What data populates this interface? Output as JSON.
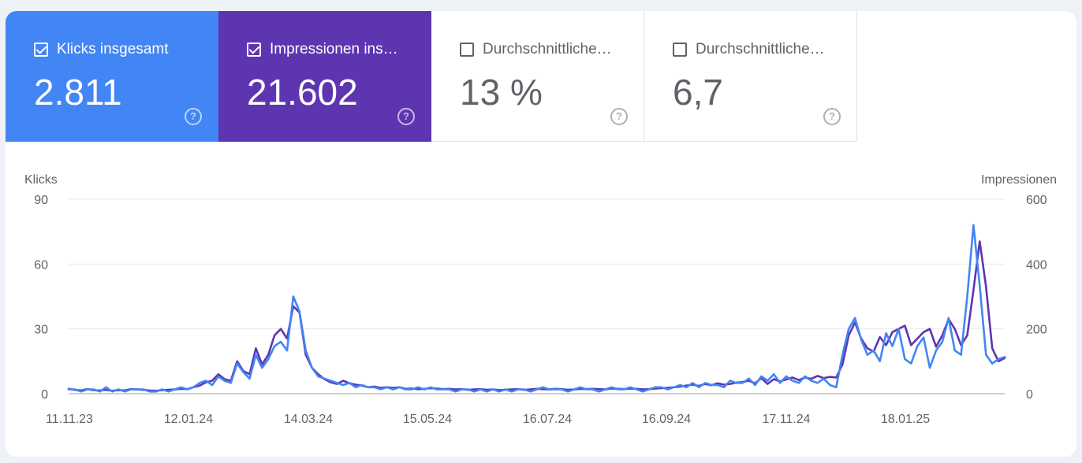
{
  "metrics": [
    {
      "label": "Klicks insgesamt",
      "value": "2.811",
      "checked": true,
      "color": "#4285f4"
    },
    {
      "label": "Impressionen ins…",
      "value": "21.602",
      "checked": true,
      "color": "#5e35b1"
    },
    {
      "label": "Durchschnittliche…",
      "value": "13 %",
      "checked": false,
      "color": "#ffffff"
    },
    {
      "label": "Durchschnittliche…",
      "value": "6,7",
      "checked": false,
      "color": "#ffffff"
    }
  ],
  "help_icon": "help-circle-icon",
  "chart_data": {
    "type": "line",
    "ylabel_left": "Klicks",
    "ylabel_right": "Impressionen",
    "ylim_left": [
      0,
      90
    ],
    "ylim_right": [
      0,
      600
    ],
    "yticks_left": [
      "0",
      "30",
      "60",
      "90"
    ],
    "yticks_right": [
      "0",
      "200",
      "400",
      "600"
    ],
    "xticks": [
      "11.11.23",
      "12.01.24",
      "14.03.24",
      "15.05.24",
      "16.07.24",
      "16.09.24",
      "17.11.24",
      "18.01.25"
    ],
    "grid": true,
    "series": [
      {
        "name": "Impressionen",
        "axis": "right",
        "color": "#5e35b1",
        "values": [
          15,
          12,
          10,
          14,
          11,
          10,
          12,
          9,
          11,
          10,
          14,
          13,
          12,
          10,
          9,
          11,
          12,
          13,
          15,
          14,
          20,
          25,
          35,
          40,
          60,
          45,
          40,
          100,
          70,
          60,
          140,
          90,
          120,
          180,
          200,
          170,
          270,
          250,
          120,
          80,
          60,
          45,
          35,
          30,
          40,
          32,
          28,
          25,
          20,
          22,
          18,
          20,
          18,
          20,
          15,
          16,
          14,
          15,
          17,
          16,
          14,
          15,
          13,
          14,
          12,
          13,
          14,
          12,
          13,
          11,
          12,
          13,
          14,
          12,
          13,
          15,
          14,
          13,
          15,
          14,
          12,
          13,
          15,
          14,
          15,
          14,
          13,
          16,
          15,
          14,
          16,
          15,
          13,
          14,
          16,
          17,
          18,
          20,
          22,
          25,
          28,
          24,
          30,
          26,
          32,
          28,
          30,
          34,
          36,
          40,
          32,
          48,
          30,
          45,
          38,
          44,
          50,
          42,
          50,
          46,
          55,
          48,
          52,
          50,
          90,
          180,
          220,
          170,
          140,
          130,
          175,
          150,
          190,
          200,
          210,
          150,
          170,
          190,
          200,
          145,
          180,
          230,
          200,
          150,
          180,
          320,
          470,
          330,
          140,
          100,
          110
        ]
      },
      {
        "name": "Klicks",
        "axis": "left",
        "color": "#4285f4",
        "values": [
          2,
          2,
          1,
          2,
          2,
          1,
          3,
          1,
          2,
          1,
          2,
          2,
          2,
          1,
          1,
          2,
          1,
          2,
          3,
          2,
          3,
          5,
          6,
          4,
          8,
          6,
          5,
          14,
          10,
          7,
          18,
          12,
          16,
          22,
          24,
          20,
          45,
          38,
          20,
          12,
          8,
          7,
          6,
          5,
          4,
          5,
          3,
          4,
          3,
          3,
          2,
          3,
          2,
          3,
          2,
          2,
          3,
          2,
          3,
          2,
          2,
          2,
          1,
          2,
          2,
          1,
          2,
          1,
          2,
          1,
          2,
          1,
          2,
          2,
          1,
          2,
          3,
          2,
          2,
          2,
          1,
          2,
          3,
          2,
          2,
          1,
          2,
          3,
          2,
          2,
          3,
          2,
          1,
          2,
          3,
          3,
          2,
          3,
          4,
          3,
          5,
          3,
          5,
          4,
          4,
          3,
          6,
          5,
          5,
          7,
          4,
          8,
          6,
          9,
          5,
          8,
          6,
          5,
          8,
          6,
          5,
          7,
          4,
          3,
          18,
          30,
          35,
          25,
          18,
          20,
          15,
          28,
          22,
          30,
          16,
          14,
          22,
          26,
          12,
          20,
          24,
          35,
          20,
          18,
          45,
          78,
          50,
          18,
          14,
          16,
          17
        ]
      }
    ]
  }
}
